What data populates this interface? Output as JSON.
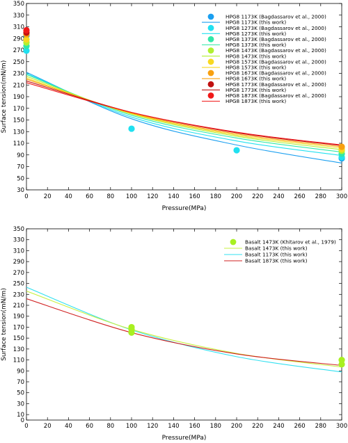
{
  "chart_data": [
    {
      "type": "line",
      "title": "",
      "xlabel": "Pressure(MPa)",
      "ylabel": "Surface tension(mN/m)",
      "xlim": [
        0,
        300
      ],
      "ylim": [
        30,
        350
      ],
      "xticks": [
        0,
        20,
        40,
        60,
        80,
        100,
        120,
        140,
        160,
        180,
        200,
        220,
        240,
        260,
        280,
        300
      ],
      "yticks": [
        30,
        50,
        70,
        90,
        110,
        130,
        150,
        170,
        190,
        210,
        230,
        250,
        270,
        290,
        310,
        330,
        350
      ],
      "grid": false,
      "legend_position": "top-right",
      "legend": [
        {
          "label": "HPG8 1173K (Bagdassarov et al., 2000)",
          "kind": "marker",
          "color": "#1a9ff0"
        },
        {
          "label": "HPG8 1173K (this work)",
          "kind": "line",
          "color": "#1a9ff0"
        },
        {
          "label": "HPG8 1273K (Bagdassarov et al., 2000)",
          "kind": "marker",
          "color": "#20e0f0"
        },
        {
          "label": "HPG8 1273K (this work)",
          "kind": "line",
          "color": "#20e0f0"
        },
        {
          "label": "HPG8 1373K (Bagdassarov et al., 2000)",
          "kind": "marker",
          "color": "#30e8a8"
        },
        {
          "label": "HPG8 1373K (this work)",
          "kind": "line",
          "color": "#30e8a8"
        },
        {
          "label": "HPG8 1473K (Bagdassarov et al., 2000)",
          "kind": "marker",
          "color": "#b0f030"
        },
        {
          "label": "HPG8 1473K (this work)",
          "kind": "line",
          "color": "#b0f030"
        },
        {
          "label": "HPG8 1573K (Bagdassarov et al., 2000)",
          "kind": "marker",
          "color": "#f8d820"
        },
        {
          "label": "HPG8 1573K (this work)",
          "kind": "line",
          "color": "#f8d820"
        },
        {
          "label": "HPG8 1673K (Bagdassarov et al., 2000)",
          "kind": "marker",
          "color": "#f8a010"
        },
        {
          "label": "HPG8 1673K (this work)",
          "kind": "line",
          "color": "#f8a010"
        },
        {
          "label": "HPG8 1773K (Bagdassarov et al., 2000)",
          "kind": "marker",
          "color": "#c01010"
        },
        {
          "label": "HPG8 1773K (this work)",
          "kind": "line",
          "color": "#c01010"
        },
        {
          "label": "HPG8 1873K (Bagdassarov et al., 2000)",
          "kind": "marker",
          "color": "#f01818"
        },
        {
          "label": "HPG8 1873K (this work)",
          "kind": "line",
          "color": "#f01818"
        }
      ],
      "series": [
        {
          "kind": "line",
          "color": "#1a9ff0",
          "x": [
            0,
            100,
            200,
            300
          ],
          "y": [
            232,
            152,
            107,
            76
          ]
        },
        {
          "kind": "line",
          "color": "#20e0f0",
          "x": [
            0,
            100,
            200,
            300
          ],
          "y": [
            230,
            155,
            114,
            89
          ]
        },
        {
          "kind": "line",
          "color": "#30e8a8",
          "x": [
            0,
            100,
            200,
            300
          ],
          "y": [
            228,
            158,
            119,
            95
          ]
        },
        {
          "kind": "line",
          "color": "#b0f030",
          "x": [
            0,
            100,
            200,
            300
          ],
          "y": [
            225,
            160,
            122,
            99
          ]
        },
        {
          "kind": "line",
          "color": "#f8d820",
          "x": [
            0,
            100,
            200,
            300
          ],
          "y": [
            222,
            161,
            124,
            102
          ]
        },
        {
          "kind": "line",
          "color": "#f8a010",
          "x": [
            0,
            100,
            200,
            300
          ],
          "y": [
            220,
            162,
            126,
            104
          ]
        },
        {
          "kind": "line",
          "color": "#c01010",
          "x": [
            0,
            100,
            200,
            300
          ],
          "y": [
            217,
            163,
            128,
            106
          ]
        },
        {
          "kind": "line",
          "color": "#f01818",
          "x": [
            0,
            100,
            200,
            300
          ],
          "y": [
            214,
            163,
            129,
            107
          ]
        },
        {
          "kind": "scatter",
          "color": "#1a9ff0",
          "x": [
            0,
            300
          ],
          "y": [
            295,
            84
          ]
        },
        {
          "kind": "scatter",
          "color": "#20e0f0",
          "x": [
            0,
            100,
            200,
            300
          ],
          "y": [
            269,
            135,
            98,
            86
          ]
        },
        {
          "kind": "scatter",
          "color": "#30e8a8",
          "x": [
            0,
            300
          ],
          "y": [
            277,
            92
          ]
        },
        {
          "kind": "scatter",
          "color": "#b0f030",
          "x": [
            0,
            300
          ],
          "y": [
            283,
            97
          ]
        },
        {
          "kind": "scatter",
          "color": "#f8d820",
          "x": [
            0,
            300
          ],
          "y": [
            288,
            100
          ]
        },
        {
          "kind": "scatter",
          "color": "#f8a010",
          "x": [
            0,
            300
          ],
          "y": [
            297,
            104
          ]
        },
        {
          "kind": "scatter",
          "color": "#c01010",
          "x": [
            0
          ],
          "y": [
            300
          ]
        },
        {
          "kind": "scatter",
          "color": "#f01818",
          "x": [
            0
          ],
          "y": [
            304
          ]
        }
      ]
    },
    {
      "type": "line",
      "title": "",
      "xlabel": "Pressure(MPa)",
      "ylabel": "Surface tension(mN/m)",
      "xlim": [
        0,
        300
      ],
      "ylim": [
        0,
        350
      ],
      "xticks": [
        0,
        20,
        40,
        60,
        80,
        100,
        120,
        140,
        160,
        180,
        200,
        220,
        240,
        260,
        280,
        300
      ],
      "yticks": [
        0,
        10,
        30,
        50,
        70,
        90,
        110,
        130,
        150,
        170,
        190,
        210,
        230,
        250,
        270,
        290,
        310,
        330,
        350
      ],
      "grid": false,
      "legend_position": "top-right",
      "legend": [
        {
          "label": "Basalt 1473K (Khitarov et al., 1979)",
          "kind": "marker",
          "color": "#a8f020"
        },
        {
          "label": "Basalt 1473K (this work)",
          "kind": "line",
          "color": "#c8f040"
        },
        {
          "label": "Basalt 1173K (this work)",
          "kind": "line",
          "color": "#30e0f0"
        },
        {
          "label": "Basalt 1873K (this work)",
          "kind": "line",
          "color": "#d02020"
        }
      ],
      "series": [
        {
          "kind": "line",
          "color": "#30e0f0",
          "x": [
            0,
            100,
            200,
            300
          ],
          "y": [
            243,
            165,
            116,
            88
          ]
        },
        {
          "kind": "line",
          "color": "#c8f040",
          "x": [
            0,
            100,
            200,
            300
          ],
          "y": [
            236,
            166,
            122,
            97
          ]
        },
        {
          "kind": "line",
          "color": "#d02020",
          "x": [
            0,
            100,
            200,
            300
          ],
          "y": [
            222,
            160,
            121,
            100
          ]
        },
        {
          "kind": "scatter",
          "color": "#a8f020",
          "x": [
            100,
            100,
            100,
            300,
            300
          ],
          "y": [
            170,
            166,
            160,
            110,
            102
          ]
        }
      ]
    }
  ]
}
